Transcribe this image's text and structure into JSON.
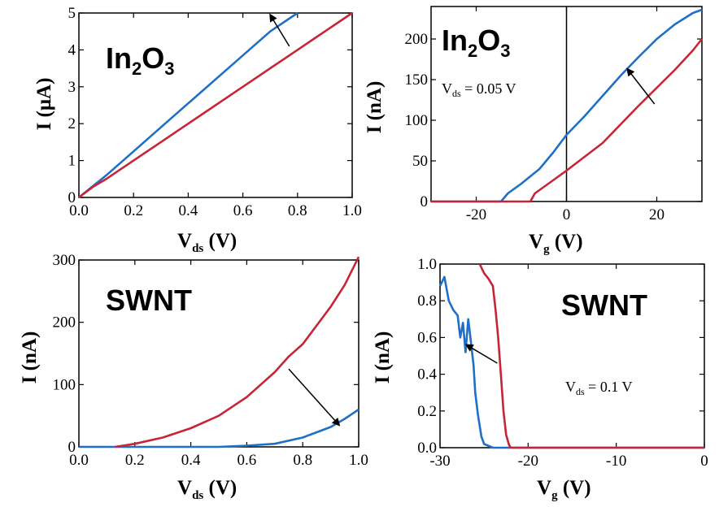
{
  "chart_data": [
    {
      "type": "line",
      "panel": "top-left",
      "title": {
        "base": "In",
        "sub1": "2",
        "mid": "O",
        "sub2": "3"
      },
      "xlabel": {
        "base": "V",
        "sub": "ds",
        "unit": " (V)"
      },
      "ylabel": "I (μA)",
      "xlim": [
        0,
        1.0
      ],
      "ylim": [
        0,
        5
      ],
      "xticks": [
        0.0,
        0.2,
        0.4,
        0.6,
        0.8,
        1.0
      ],
      "xtick_labels": [
        "0.0",
        "0.2",
        "0.4",
        "0.6",
        "0.8",
        "1.0"
      ],
      "yticks": [
        0,
        1,
        2,
        3,
        4,
        5
      ],
      "ytick_labels": [
        "0",
        "1",
        "2",
        "3",
        "4",
        "5"
      ],
      "series": [
        {
          "color": "#1f6fc7",
          "x": [
            0,
            0.05,
            0.1,
            0.2,
            0.3,
            0.4,
            0.5,
            0.6,
            0.7,
            0.8
          ],
          "y": [
            0,
            0.3,
            0.6,
            1.25,
            1.9,
            2.55,
            3.2,
            3.85,
            4.5,
            5.0
          ]
        },
        {
          "color": "#c72535",
          "x": [
            0,
            0.05,
            0.1,
            0.2,
            0.3,
            0.4,
            0.5,
            0.6,
            0.7,
            0.8,
            0.9,
            1.0
          ],
          "y": [
            0,
            0.28,
            0.5,
            1.0,
            1.5,
            2.0,
            2.5,
            3.0,
            3.5,
            4.0,
            4.5,
            5.0
          ]
        }
      ],
      "arrow": {
        "from": [
          0.77,
          4.1
        ],
        "to": [
          0.7,
          4.95
        ]
      }
    },
    {
      "type": "line",
      "panel": "top-right",
      "title": {
        "base": "In",
        "sub1": "2",
        "mid": "O",
        "sub2": "3"
      },
      "xlabel": {
        "base": "V",
        "sub": "g",
        "unit": " (V)"
      },
      "ylabel": "I (nA)",
      "xlim": [
        -30,
        30
      ],
      "ylim": [
        0,
        240
      ],
      "xticks": [
        -20,
        0,
        20
      ],
      "xtick_labels": [
        "-20",
        "0",
        "20"
      ],
      "yticks": [
        0,
        50,
        100,
        150,
        200
      ],
      "ytick_labels": [
        "0",
        "50",
        "100",
        "150",
        "200"
      ],
      "annotation": {
        "base": "V",
        "sub": "ds",
        "rest": " = 0.05 V"
      },
      "vline_x": 0,
      "series": [
        {
          "color": "#1f6fc7",
          "x": [
            -30,
            -14.5,
            -13,
            -10,
            -6,
            -3,
            0,
            4,
            8,
            12,
            16,
            20,
            24,
            28,
            30
          ],
          "y": [
            0,
            0,
            10,
            22,
            40,
            60,
            82,
            105,
            130,
            155,
            178,
            200,
            218,
            232,
            236
          ]
        },
        {
          "color": "#c72535",
          "x": [
            -30,
            -8,
            -7,
            -4,
            0,
            4,
            8,
            12,
            16,
            20,
            24,
            28,
            30
          ],
          "y": [
            0,
            0,
            10,
            22,
            38,
            55,
            72,
            95,
            118,
            140,
            162,
            186,
            200
          ]
        }
      ],
      "arrow": {
        "from": [
          19.5,
          120
        ],
        "to": [
          13.5,
          163
        ]
      }
    },
    {
      "type": "line",
      "panel": "bottom-left",
      "title": "SWNT",
      "xlabel": {
        "base": "V",
        "sub": "ds",
        "unit": " (V)"
      },
      "ylabel": "I (nA)",
      "xlim": [
        0,
        1.0
      ],
      "ylim": [
        0,
        300
      ],
      "xticks": [
        0.0,
        0.2,
        0.4,
        0.6,
        0.8,
        1.0
      ],
      "xtick_labels": [
        "0.0",
        "0.2",
        "0.4",
        "0.6",
        "0.8",
        "1.0"
      ],
      "yticks": [
        0,
        100,
        200,
        300
      ],
      "ytick_labels": [
        "0",
        "100",
        "200",
        "300"
      ],
      "series": [
        {
          "color": "#1f6fc7",
          "x": [
            0,
            0.5,
            0.6,
            0.7,
            0.8,
            0.9,
            0.95,
            1.0
          ],
          "y": [
            0,
            0,
            2,
            5,
            15,
            32,
            45,
            60
          ]
        },
        {
          "color": "#c72535",
          "x": [
            0.13,
            0.2,
            0.3,
            0.4,
            0.5,
            0.6,
            0.7,
            0.75,
            0.8,
            0.85,
            0.9,
            0.95,
            1.0
          ],
          "y": [
            0,
            5,
            15,
            30,
            50,
            80,
            120,
            145,
            165,
            195,
            225,
            260,
            305
          ]
        }
      ],
      "arrow": {
        "from": [
          0.75,
          125
        ],
        "to": [
          0.93,
          35
        ]
      }
    },
    {
      "type": "line",
      "panel": "bottom-right",
      "title": "SWNT",
      "xlabel": {
        "base": "V",
        "sub": "g",
        "unit": " (V)"
      },
      "ylabel": "I (nA)",
      "xlim": [
        -30,
        0
      ],
      "ylim": [
        0,
        1.0
      ],
      "xticks": [
        -30,
        -20,
        -10,
        0
      ],
      "xtick_labels": [
        "-30",
        "-20",
        "-10",
        "0"
      ],
      "yticks": [
        0.0,
        0.2,
        0.4,
        0.6,
        0.8,
        1.0
      ],
      "ytick_labels": [
        "0.0",
        "0.2",
        "0.4",
        "0.6",
        "0.8",
        "1.0"
      ],
      "annotation": {
        "base": "V",
        "sub": "ds",
        "rest": " = 0.1 V"
      },
      "series": [
        {
          "color": "#1f6fc7",
          "x": [
            -30,
            -29.5,
            -29,
            -28.5,
            -28,
            -27.7,
            -27.4,
            -27.1,
            -26.8,
            -26.5,
            -26.2,
            -26,
            -25.7,
            -25.3,
            -25,
            -24,
            -20,
            0
          ],
          "y": [
            0.88,
            0.93,
            0.8,
            0.75,
            0.72,
            0.6,
            0.68,
            0.52,
            0.7,
            0.58,
            0.45,
            0.3,
            0.18,
            0.06,
            0.02,
            0.0,
            0.0,
            0.0
          ]
        },
        {
          "color": "#c72535",
          "x": [
            -25.5,
            -25,
            -24.5,
            -24,
            -23.7,
            -23.4,
            -23.1,
            -22.8,
            -22.5,
            -22.2,
            -22,
            -20,
            0
          ],
          "y": [
            1.0,
            0.95,
            0.92,
            0.88,
            0.75,
            0.6,
            0.4,
            0.2,
            0.07,
            0.02,
            0.0,
            0.0,
            0.0
          ]
        }
      ],
      "arrow": {
        "from": [
          -23.5,
          0.46
        ],
        "to": [
          -27.0,
          0.56
        ]
      }
    }
  ]
}
